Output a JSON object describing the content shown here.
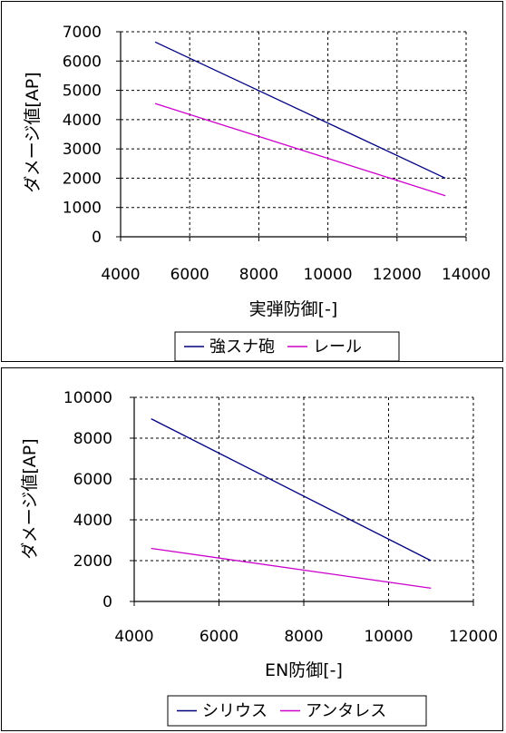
{
  "chart_data": [
    {
      "type": "line",
      "title": "",
      "xlabel": "実弾防御[-]",
      "ylabel": "ダメージ値[AP]",
      "xlim": [
        4000,
        14000
      ],
      "ylim": [
        0,
        7000
      ],
      "xticks": [
        4000,
        6000,
        8000,
        10000,
        12000,
        14000
      ],
      "yticks": [
        0,
        1000,
        2000,
        3000,
        4000,
        5000,
        6000,
        7000
      ],
      "grid": true,
      "legend_position": "bottom",
      "series": [
        {
          "name": "強スナ砲",
          "color": "#000080",
          "x": [
            5000,
            13400
          ],
          "y": [
            6650,
            2000
          ]
        },
        {
          "name": "レール",
          "color": "#cc00cc",
          "x": [
            5000,
            13400
          ],
          "y": [
            4550,
            1400
          ]
        }
      ]
    },
    {
      "type": "line",
      "title": "",
      "xlabel": "EN防御[-]",
      "ylabel": "ダメージ値[AP]",
      "xlim": [
        4000,
        12000
      ],
      "ylim": [
        0,
        10000
      ],
      "xticks": [
        4000,
        6000,
        8000,
        10000,
        12000
      ],
      "yticks": [
        0,
        2000,
        4000,
        6000,
        8000,
        10000
      ],
      "grid": true,
      "legend_position": "bottom",
      "series": [
        {
          "name": "シリウス",
          "color": "#000080",
          "x": [
            4400,
            11000
          ],
          "y": [
            8950,
            2000
          ]
        },
        {
          "name": "アンタレス",
          "color": "#cc00cc",
          "x": [
            4400,
            11000
          ],
          "y": [
            2600,
            650
          ]
        }
      ]
    }
  ]
}
